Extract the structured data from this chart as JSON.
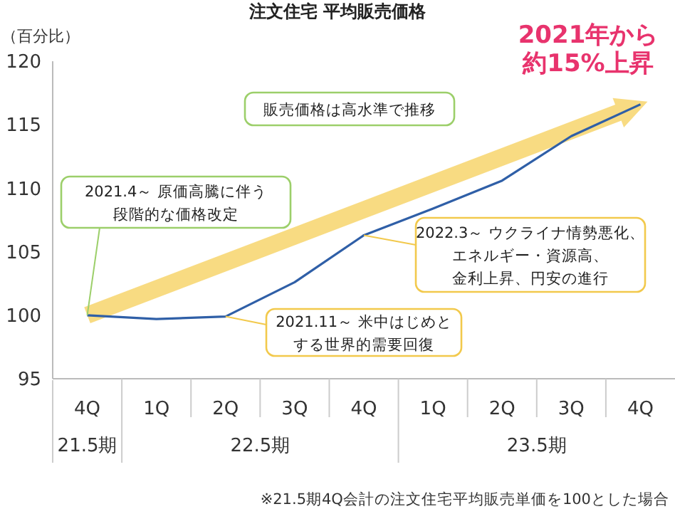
{
  "chart_data": {
    "type": "line",
    "title": "注文住宅 平均販売価格",
    "ylabel": "（百分比）",
    "categories": [
      "4Q",
      "1Q",
      "2Q",
      "3Q",
      "4Q",
      "1Q",
      "2Q",
      "3Q",
      "4Q"
    ],
    "series": [
      {
        "color": "#2f5fa7",
        "values": [
          100,
          99.7,
          99.9,
          102.6,
          106.3,
          108.4,
          110.6,
          114.1,
          116.6
        ]
      }
    ],
    "ylim": [
      95,
      120
    ],
    "yticks": [
      95,
      100,
      105,
      110,
      115,
      120
    ],
    "grid": false,
    "marker": "none",
    "line_style": "solid",
    "annotations": [
      "2021年から約15%上昇",
      "販売価格は高水準で推移",
      {
        "text": "2021.4～ 原価高騰に伴う段階的な価格改定",
        "x": "4Q",
        "y": 100
      },
      "2022.3～ ウクライナ情勢悪化、エネルギー・資源高、金利上昇、円安の進行",
      {
        "text": "2021.11～ 米中はじめとする世界的需要回復",
        "x": "2Q",
        "y": 99.9
      },
      "21.5期",
      "22.5期",
      "23.5期",
      "※21.5期4Q会計の注文住宅平均販売単価を100とした場合"
    ]
  }
}
